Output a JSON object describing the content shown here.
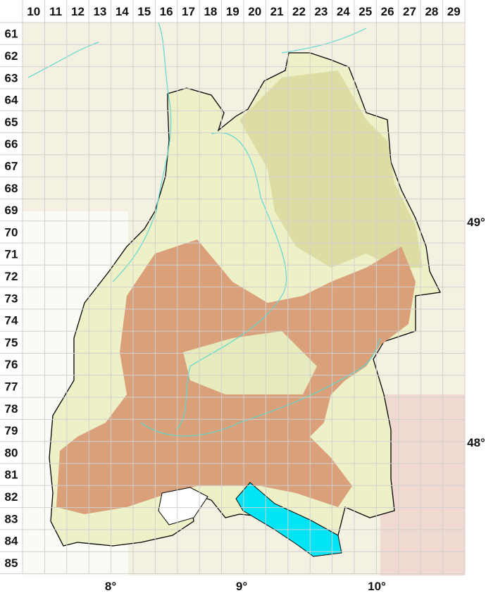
{
  "grid": {
    "columns": [
      "10",
      "11",
      "12",
      "13",
      "14",
      "15",
      "16",
      "17",
      "18",
      "19",
      "20",
      "21",
      "22",
      "23",
      "24",
      "25",
      "26",
      "27",
      "28",
      "29"
    ],
    "rows": [
      "61",
      "62",
      "63",
      "64",
      "65",
      "66",
      "67",
      "68",
      "69",
      "70",
      "71",
      "72",
      "73",
      "74",
      "75",
      "76",
      "77",
      "78",
      "79",
      "80",
      "81",
      "82",
      "83",
      "84",
      "85"
    ]
  },
  "longitude_labels": [
    {
      "text": "8°",
      "value": 8
    },
    {
      "text": "9°",
      "value": 9
    },
    {
      "text": "10°",
      "value": 10
    }
  ],
  "latitude_labels": [
    {
      "text": "49°",
      "value": 49
    },
    {
      "text": "48°",
      "value": 48
    }
  ],
  "colors": {
    "outside": "#f4f1e2",
    "lowland": "#eef0c8",
    "hills": "#d8d89a",
    "highland": "#d9a07a",
    "lake": "#00e5f5",
    "river": "#5fd8d0",
    "border": "#000000",
    "grid": "#d0d0d0"
  }
}
